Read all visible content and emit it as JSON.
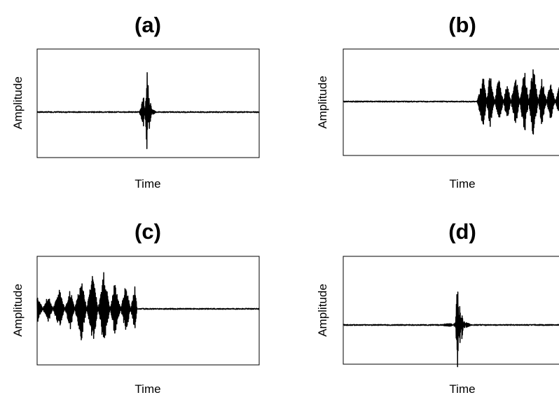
{
  "chart_data": [
    {
      "type": "line",
      "title": "(a)",
      "xlabel": "Time",
      "ylabel": "Amplitude",
      "description_of_signal": "flat baseline with a single sharp, narrow spike at the middle of the time axis",
      "x": [
        0,
        0.46,
        0.48,
        0.49,
        0.495,
        0.5,
        0.505,
        0.51,
        0.52,
        0.54,
        1
      ],
      "series": [
        {
          "values": [
            0,
            0,
            -0.3,
            0.3,
            1.0,
            -0.55,
            0.4,
            -0.2,
            0.05,
            0,
            0
          ]
        }
      ],
      "ylim": [
        -1,
        1
      ],
      "grid": false
    },
    {
      "type": "line",
      "title": "(b)",
      "xlabel": "Time",
      "ylabel": "Amplitude",
      "x": [
        0,
        0.25,
        0.5,
        0.62,
        0.65,
        0.68,
        0.72,
        0.76,
        0.8,
        0.84,
        0.88,
        0.92,
        0.96,
        1
      ],
      "series": [
        {
          "values": [
            0,
            0,
            0,
            0,
            0.55,
            -0.6,
            0.5,
            -0.4,
            0.55,
            -0.7,
            0.75,
            -0.5,
            0.4,
            -0.3
          ]
        }
      ],
      "ylim": [
        -1,
        1
      ],
      "grid": false
    },
    {
      "type": "line",
      "title": "(c)",
      "xlabel": "Time",
      "ylabel": "Amplitude",
      "x": [
        0,
        0.05,
        0.1,
        0.15,
        0.2,
        0.25,
        0.3,
        0.35,
        0.4,
        0.44,
        0.45,
        0.6,
        0.8,
        1
      ],
      "series": [
        {
          "values": [
            0.3,
            -0.3,
            0.4,
            -0.4,
            0.65,
            -0.75,
            0.75,
            -0.55,
            0.5,
            -0.45,
            0,
            0,
            0,
            0
          ]
        }
      ],
      "ylim": [
        -1,
        1
      ],
      "grid": false
    },
    {
      "type": "line",
      "title": "(d)",
      "xlabel": "Time",
      "ylabel": "Amplitude",
      "x": [
        0,
        0.2,
        0.4,
        0.5,
        0.52,
        0.53,
        0.54,
        0.55,
        0.56,
        0.57,
        0.6,
        0.8,
        1
      ],
      "series": [
        {
          "values": [
            0,
            0,
            0,
            0.03,
            -0.05,
            1.0,
            -0.55,
            0.3,
            -0.1,
            0.05,
            0,
            0,
            0
          ]
        }
      ],
      "ylim": [
        -1,
        1
      ],
      "grid": false
    }
  ],
  "colors": {
    "signal": "#000000",
    "frame": "#000000",
    "background": "#ffffff"
  }
}
